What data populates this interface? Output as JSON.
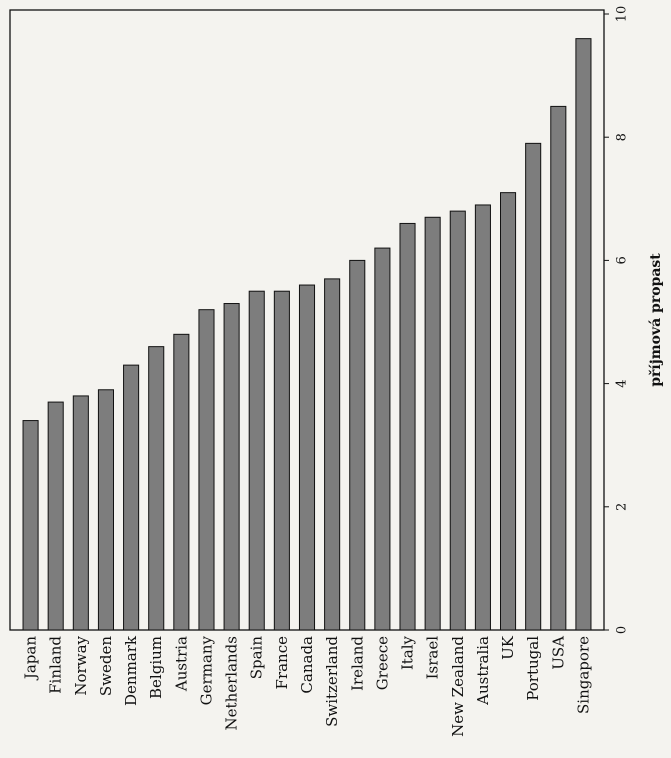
{
  "chart_data": {
    "type": "bar",
    "orientation": "vertical",
    "title": "",
    "xlabel": "",
    "ylabel": "příjmová propast",
    "ylim": [
      0,
      10
    ],
    "yticks": [
      0,
      2,
      4,
      6,
      8,
      10
    ],
    "grid": false,
    "categories": [
      "Japan",
      "Finland",
      "Norway",
      "Sweden",
      "Denmark",
      "Belgium",
      "Austria",
      "Germany",
      "Netherlands",
      "Spain",
      "France",
      "Canada",
      "Switzerland",
      "Ireland",
      "Greece",
      "Italy",
      "Israel",
      "New Zealand",
      "Australia",
      "UK",
      "Portugal",
      "USA",
      "Singapore"
    ],
    "values": [
      3.4,
      3.7,
      3.8,
      3.9,
      4.3,
      4.6,
      4.8,
      5.2,
      5.3,
      5.5,
      5.5,
      5.6,
      5.7,
      6.0,
      6.2,
      6.6,
      6.7,
      6.8,
      6.9,
      7.1,
      7.9,
      8.5,
      9.6
    ],
    "bar_color": "#7d7d7d",
    "bar_edge_color": "#111111"
  }
}
